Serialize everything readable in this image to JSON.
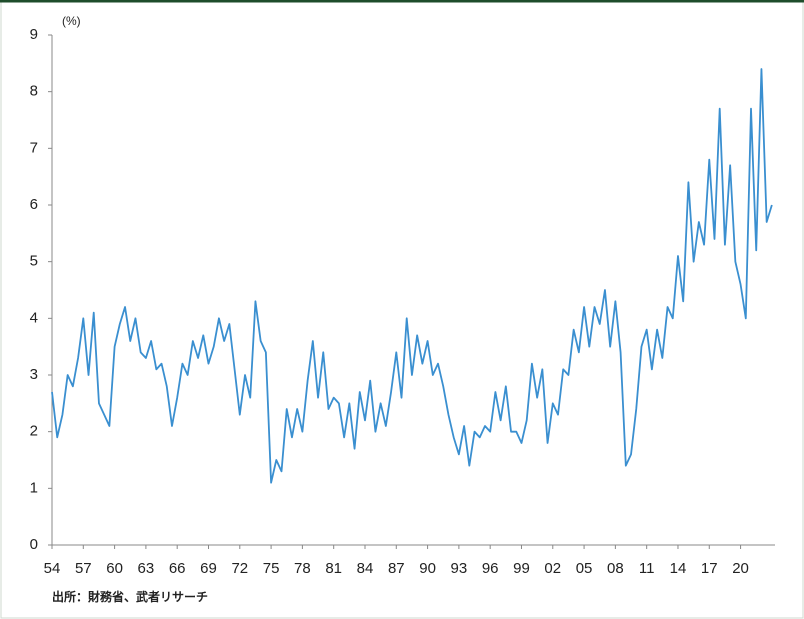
{
  "chart_data": {
    "type": "line",
    "y_unit_label": "(%)",
    "source": "出所：財務省、武者リサーチ",
    "x": [
      1954,
      1954.5,
      1955,
      1955.5,
      1956,
      1956.5,
      1957,
      1957.5,
      1958,
      1958.5,
      1959,
      1959.5,
      1960,
      1960.5,
      1961,
      1961.5,
      1962,
      1962.5,
      1963,
      1963.5,
      1964,
      1964.5,
      1965,
      1965.5,
      1966,
      1966.5,
      1967,
      1967.5,
      1968,
      1968.5,
      1969,
      1969.5,
      1970,
      1970.5,
      1971,
      1971.5,
      1972,
      1972.5,
      1973,
      1973.5,
      1974,
      1974.5,
      1975,
      1975.5,
      1976,
      1976.5,
      1977,
      1977.5,
      1978,
      1978.5,
      1979,
      1979.5,
      1980,
      1980.5,
      1981,
      1981.5,
      1982,
      1982.5,
      1983,
      1983.5,
      1984,
      1984.5,
      1985,
      1985.5,
      1986,
      1986.5,
      1987,
      1987.5,
      1988,
      1988.5,
      1989,
      1989.5,
      1990,
      1990.5,
      1991,
      1991.5,
      1992,
      1992.5,
      1993,
      1993.5,
      1994,
      1994.5,
      1995,
      1995.5,
      1996,
      1996.5,
      1997,
      1997.5,
      1998,
      1998.5,
      1999,
      1999.5,
      2000,
      2000.5,
      2001,
      2001.5,
      2002,
      2002.5,
      2003,
      2003.5,
      2004,
      2004.5,
      2005,
      2005.5,
      2006,
      2006.5,
      2007,
      2007.5,
      2008,
      2008.5,
      2009,
      2009.5,
      2010,
      2010.5,
      2011,
      2011.5,
      2012,
      2012.5,
      2013,
      2013.5,
      2014,
      2014.5,
      2015,
      2015.5,
      2016,
      2016.5,
      2017,
      2017.5,
      2018,
      2018.5,
      2019,
      2019.5,
      2020,
      2020.5,
      2021,
      2021.5,
      2022,
      2022.5,
      2023
    ],
    "series": [
      {
        "color": "#3a8fd0",
        "values": [
          2.7,
          1.9,
          2.3,
          3.0,
          2.8,
          3.3,
          4.0,
          3.0,
          4.1,
          2.5,
          2.3,
          2.1,
          3.5,
          3.9,
          4.2,
          3.6,
          4.0,
          3.4,
          3.3,
          3.6,
          3.1,
          3.2,
          2.8,
          2.1,
          2.6,
          3.2,
          3.0,
          3.6,
          3.3,
          3.7,
          3.2,
          3.5,
          4.0,
          3.6,
          3.9,
          3.1,
          2.3,
          3.0,
          2.6,
          4.3,
          3.6,
          3.4,
          1.1,
          1.5,
          1.3,
          2.4,
          1.9,
          2.4,
          2.0,
          2.9,
          3.6,
          2.6,
          3.4,
          2.4,
          2.6,
          2.5,
          1.9,
          2.5,
          1.7,
          2.7,
          2.2,
          2.9,
          2.0,
          2.5,
          2.1,
          2.7,
          3.4,
          2.6,
          4.0,
          3.0,
          3.7,
          3.2,
          3.6,
          3.0,
          3.2,
          2.8,
          2.3,
          1.9,
          1.6,
          2.1,
          1.4,
          2.0,
          1.9,
          2.1,
          2.0,
          2.7,
          2.2,
          2.8,
          2.0,
          2.0,
          1.8,
          2.2,
          3.2,
          2.6,
          3.1,
          1.8,
          2.5,
          2.3,
          3.1,
          3.0,
          3.8,
          3.4,
          4.2,
          3.5,
          4.2,
          3.9,
          4.5,
          3.5,
          4.3,
          3.4,
          1.4,
          1.6,
          2.4,
          3.5,
          3.8,
          3.1,
          3.8,
          3.3,
          4.2,
          4.0,
          5.1,
          4.3,
          6.4,
          5.0,
          5.7,
          5.3,
          6.8,
          5.4,
          7.7,
          5.3,
          6.7,
          5.0,
          4.6,
          4.0,
          7.7,
          5.2,
          8.4,
          5.7,
          6.0
        ]
      }
    ],
    "xlim": [
      1954,
      2023.3
    ],
    "ylim": [
      0,
      9
    ],
    "xticks": [
      {
        "value": 1954,
        "label": "54"
      },
      {
        "value": 1957,
        "label": "57"
      },
      {
        "value": 1960,
        "label": "60"
      },
      {
        "value": 1963,
        "label": "63"
      },
      {
        "value": 1966,
        "label": "66"
      },
      {
        "value": 1969,
        "label": "69"
      },
      {
        "value": 1972,
        "label": "72"
      },
      {
        "value": 1975,
        "label": "75"
      },
      {
        "value": 1978,
        "label": "78"
      },
      {
        "value": 1981,
        "label": "81"
      },
      {
        "value": 1984,
        "label": "84"
      },
      {
        "value": 1987,
        "label": "87"
      },
      {
        "value": 1990,
        "label": "90"
      },
      {
        "value": 1993,
        "label": "93"
      },
      {
        "value": 1996,
        "label": "96"
      },
      {
        "value": 1999,
        "label": "99"
      },
      {
        "value": 2002,
        "label": "02"
      },
      {
        "value": 2005,
        "label": "05"
      },
      {
        "value": 2008,
        "label": "08"
      },
      {
        "value": 2011,
        "label": "11"
      },
      {
        "value": 2014,
        "label": "14"
      },
      {
        "value": 2017,
        "label": "17"
      },
      {
        "value": 2020,
        "label": "20"
      }
    ],
    "yticks": [
      0,
      1,
      2,
      3,
      4,
      5,
      6,
      7,
      8,
      9
    ]
  }
}
